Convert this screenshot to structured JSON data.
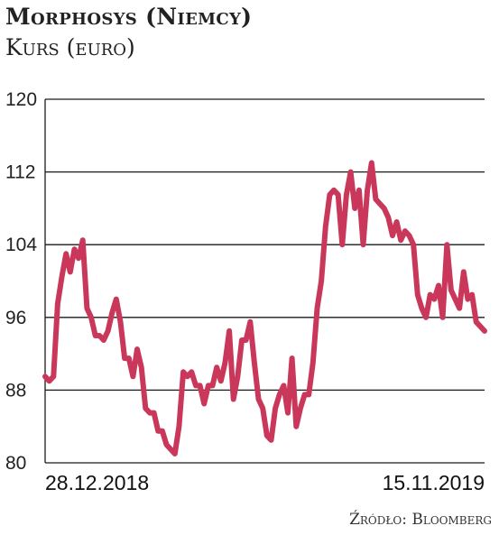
{
  "header": {
    "title": "Morphosys (Niemcy)",
    "subtitle": "Kurs (euro)"
  },
  "source": "Źródło: Bloomberg",
  "colors": {
    "line": "#c9375a",
    "grid": "#1a1a1a",
    "text": "#222222"
  },
  "chart_data": {
    "type": "line",
    "title": "Morphosys (Niemcy)",
    "subtitle": "Kurs (euro)",
    "xlabel": "",
    "ylabel": "",
    "ylim": [
      80,
      120
    ],
    "yticks": [
      120,
      112,
      104,
      96,
      88,
      80
    ],
    "ytick_labels": [
      "120",
      "112",
      "104",
      "96",
      "88",
      "80"
    ],
    "xtick_labels": [
      "28.12.2018",
      "15.11.2019"
    ],
    "grid": true,
    "series": [
      {
        "values": [
          89.5,
          89,
          89.5,
          97.5,
          100.5,
          103,
          101,
          103.5,
          102.5,
          104.5,
          97,
          96,
          94,
          94,
          93.5,
          94.5,
          96.5,
          98,
          95.5,
          91.5,
          91.5,
          89.5,
          92.5,
          90.5,
          86,
          85.5,
          85.5,
          83.5,
          83.5,
          82,
          81.5,
          81,
          84,
          90,
          89.5,
          90,
          88.5,
          88.5,
          86.5,
          88.5,
          88.5,
          90.5,
          89,
          91,
          94.5,
          87,
          89.5,
          93.5,
          93.5,
          95.5,
          91,
          87,
          86,
          83,
          82.5,
          86,
          87.5,
          88.5,
          85.5,
          91.5,
          84,
          86,
          87.5,
          87.5,
          91,
          97,
          100,
          106,
          109.5,
          110,
          109.5,
          104,
          109.5,
          112,
          108,
          110,
          104,
          110,
          113,
          109,
          108.5,
          108,
          107,
          105,
          106.5,
          104.5,
          105.5,
          105,
          104,
          98.5,
          97,
          96,
          98.5,
          98,
          99.5,
          96,
          104,
          99,
          98,
          97,
          101,
          98,
          98.5,
          95.5,
          95,
          94.5
        ]
      }
    ]
  }
}
